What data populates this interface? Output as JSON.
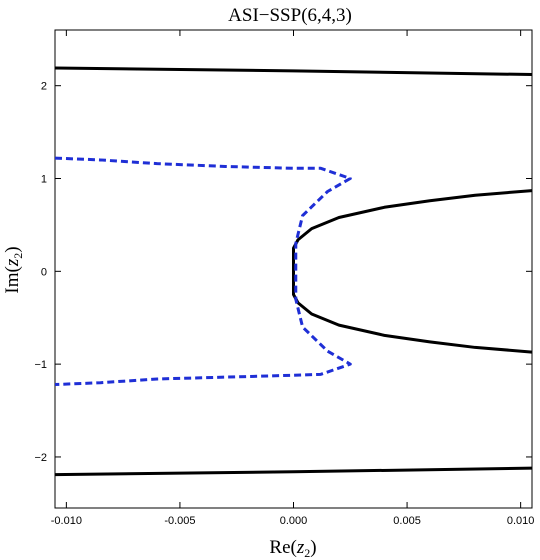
{
  "chart_data": {
    "type": "line",
    "title": "ASI−SSP(6,4,3)",
    "xlabel": {
      "main": "Re(",
      "var": "z",
      "sub": "2",
      "close": ")"
    },
    "ylabel": {
      "main": "Im(",
      "var": "z",
      "sub": "2",
      "close": ")"
    },
    "xlim": [
      -0.0105,
      0.0105
    ],
    "ylim": [
      -2.55,
      2.6
    ],
    "xticks": [
      {
        "value": -0.01,
        "label": "-0.010"
      },
      {
        "value": -0.005,
        "label": "-0.005"
      },
      {
        "value": 0.0,
        "label": "0.000"
      },
      {
        "value": 0.005,
        "label": "0.005"
      },
      {
        "value": 0.01,
        "label": "0.010"
      }
    ],
    "yticks": [
      {
        "value": 2,
        "label": "2"
      },
      {
        "value": 1,
        "label": "1"
      },
      {
        "value": 0,
        "label": "0"
      },
      {
        "value": -1,
        "label": "−1"
      },
      {
        "value": -2,
        "label": "−2"
      }
    ],
    "grid": false,
    "series": [
      {
        "color": "#000000",
        "style": "solid",
        "points": [
          [
            -0.0105,
            2.19
          ],
          [
            0.0,
            2.16
          ],
          [
            0.0105,
            2.12
          ]
        ]
      },
      {
        "color": "#000000",
        "style": "solid",
        "points": [
          [
            -0.0105,
            -2.19
          ],
          [
            0.0,
            -2.16
          ],
          [
            0.0105,
            -2.12
          ]
        ]
      },
      {
        "color": "#000000",
        "style": "solid",
        "points": [
          [
            0.0105,
            0.87
          ],
          [
            0.008,
            0.82
          ],
          [
            0.006,
            0.76
          ],
          [
            0.004,
            0.69
          ],
          [
            0.002,
            0.58
          ],
          [
            0.0008,
            0.46
          ],
          [
            0.0002,
            0.34
          ],
          [
            0.0,
            0.25
          ],
          [
            0.0,
            0.0
          ],
          [
            0.0,
            -0.25
          ],
          [
            0.0002,
            -0.34
          ],
          [
            0.0008,
            -0.46
          ],
          [
            0.002,
            -0.58
          ],
          [
            0.004,
            -0.69
          ],
          [
            0.006,
            -0.76
          ],
          [
            0.008,
            -0.82
          ],
          [
            0.0105,
            -0.87
          ]
        ]
      },
      {
        "color": "#1f2fd6",
        "style": "dashed",
        "points": [
          [
            -0.0105,
            1.22
          ],
          [
            -0.0085,
            1.2
          ],
          [
            -0.006,
            1.16
          ],
          [
            -0.003,
            1.13
          ],
          [
            0.0,
            1.11
          ],
          [
            0.0012,
            1.11
          ],
          [
            0.0025,
            1.0
          ],
          [
            0.0015,
            0.86
          ],
          [
            0.0004,
            0.6
          ],
          [
            0.0001,
            0.3
          ],
          [
            0.0001,
            0.0
          ],
          [
            0.0001,
            -0.3
          ],
          [
            0.0004,
            -0.6
          ],
          [
            0.0015,
            -0.86
          ],
          [
            0.0025,
            -1.0
          ],
          [
            0.0012,
            -1.11
          ],
          [
            0.0,
            -1.12
          ],
          [
            -0.003,
            -1.14
          ],
          [
            -0.006,
            -1.16
          ],
          [
            -0.0085,
            -1.2
          ],
          [
            -0.0105,
            -1.22
          ]
        ]
      }
    ]
  }
}
